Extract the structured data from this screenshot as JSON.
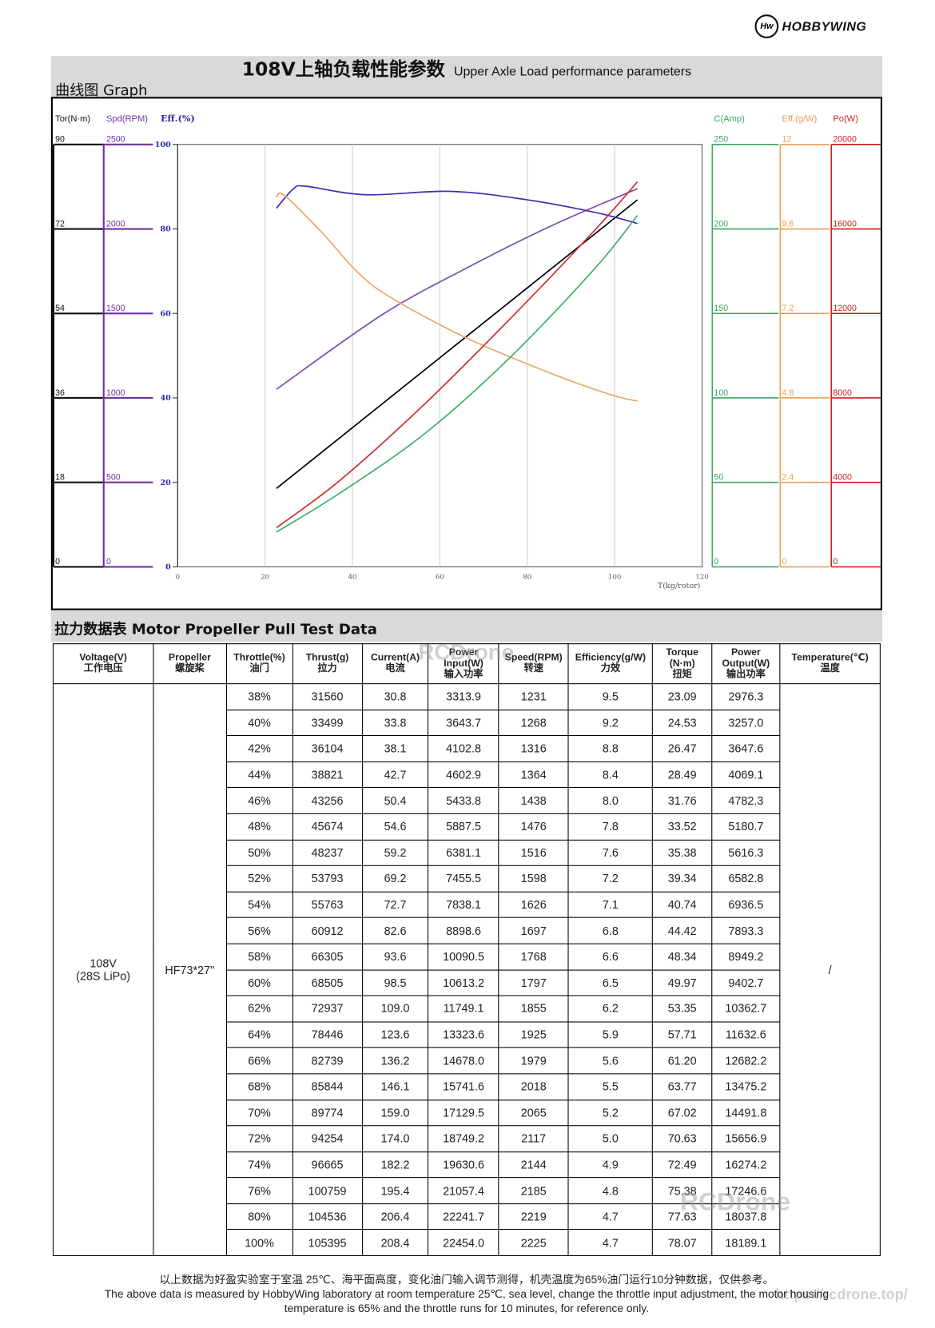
{
  "logo": {
    "mark": "Hw",
    "text": "HOBBYWING"
  },
  "header": {
    "title_cn": "108V上轴负载性能参数",
    "title_en": "Upper Axle Load performance parameters",
    "graph_label": "曲线图 Graph"
  },
  "table_section": {
    "label": "拉力数据表 Motor Propeller Pull Test Data"
  },
  "chart_data": {
    "type": "line",
    "xlabel": "T(kg/rotor)",
    "xlim": [
      0,
      120
    ],
    "x_ticks": [
      "0",
      "20",
      "40",
      "60",
      "80",
      "100",
      "120"
    ],
    "grid": "vertical",
    "axes": [
      {
        "key": "torque",
        "label": "Tor(N·m)",
        "side": "left",
        "color": "#111111",
        "ticks": [
          "90",
          "72",
          "54",
          "36",
          "18",
          "0"
        ],
        "range": [
          0,
          90
        ]
      },
      {
        "key": "speed",
        "label": "Spd(RPM)",
        "side": "left",
        "color": "#7030a0",
        "ticks": [
          "2500",
          "2000",
          "1500",
          "1000",
          "500",
          "0"
        ],
        "range": [
          0,
          2500
        ]
      },
      {
        "key": "eff_pct",
        "label": "Eff.(%)",
        "side": "left",
        "color": "#2a2aa0",
        "ticks": [
          "100",
          "80",
          "60",
          "40",
          "20",
          "0"
        ],
        "range": [
          0,
          100
        ]
      },
      {
        "key": "current",
        "label": "C(Amp)",
        "side": "right",
        "color": "#3aa860",
        "ticks": [
          "250",
          "200",
          "150",
          "100",
          "50",
          "0"
        ],
        "range": [
          0,
          250
        ]
      },
      {
        "key": "eff_gw",
        "label": "Eff.(g/W)",
        "side": "right",
        "color": "#e8a050",
        "ticks": [
          "12",
          "9.6",
          "7.2",
          "4.8",
          "2.4",
          "0"
        ],
        "range": [
          0,
          12
        ]
      },
      {
        "key": "power",
        "label": "Po(W)",
        "side": "right",
        "color": "#cc2020",
        "ticks": [
          "20000",
          "16000",
          "12000",
          "8000",
          "4000",
          "0"
        ],
        "range": [
          0,
          20000
        ]
      }
    ],
    "series": [
      {
        "axis": "torque",
        "color": "#000000",
        "x": [
          22.6,
          105.2
        ],
        "y": [
          16.7,
          78.2
        ]
      },
      {
        "axis": "speed",
        "color": "#7b4fb0",
        "x": [
          22.6,
          46.9,
          66.3,
          85.8,
          105.2
        ],
        "y": [
          1051,
          1494,
          1771,
          2022,
          2238
        ]
      },
      {
        "axis": "eff_pct",
        "color": "#3a2fb0",
        "x": [
          22.6,
          26.5,
          29.4,
          43.0,
          62.5,
          80.0,
          95.6,
          105.2
        ],
        "y": [
          84.9,
          89.5,
          90.1,
          88.1,
          88.9,
          86.9,
          83.9,
          81.3
        ]
      },
      {
        "axis": "eff_gw",
        "color": "#e8a868",
        "x": [
          22.6,
          24.5,
          33.3,
          41.1,
          48.8,
          66.3,
          85.8,
          99.4,
          105.2
        ],
        "y": [
          10.5,
          10.55,
          9.46,
          8.38,
          7.65,
          6.49,
          5.48,
          4.88,
          4.71
        ]
      },
      {
        "axis": "current",
        "color": "#3cb06a",
        "x": [
          22.6,
          37.2,
          56.6,
          76.1,
          95.6,
          105.2
        ],
        "y": [
          20.6,
          43.8,
          79,
          124,
          177,
          208
        ]
      },
      {
        "axis": "power",
        "color": "#d03030",
        "x": [
          22.6,
          37.2,
          56.6,
          76.1,
          95.6,
          105.2
        ],
        "y": [
          1851,
          4105,
          7726,
          11750,
          15976,
          18229
        ]
      }
    ]
  },
  "table": {
    "headers": [
      [
        "Voltage(V)",
        "工作电压"
      ],
      [
        "Propeller",
        "螺旋桨"
      ],
      [
        "Throttle(%)",
        "油门"
      ],
      [
        "Thrust(g)",
        "拉力"
      ],
      [
        "Current(A)",
        "电流"
      ],
      [
        "Power",
        "Input(W)",
        "输入功率"
      ],
      [
        "Speed(RPM)",
        "转速"
      ],
      [
        "Efficiency(g/W)",
        "力效"
      ],
      [
        "Torque",
        "(N·m)",
        "扭矩"
      ],
      [
        "Power",
        "Output(W)",
        "输出功率"
      ],
      [
        "Temperature(℃)",
        "温度"
      ]
    ],
    "voltage": [
      "108V",
      "(28S LiPo)"
    ],
    "propeller": "HF73*27''",
    "temperature": "/",
    "rows": [
      [
        "38%",
        "31560",
        "30.8",
        "3313.9",
        "1231",
        "9.5",
        "23.09",
        "2976.3"
      ],
      [
        "40%",
        "33499",
        "33.8",
        "3643.7",
        "1268",
        "9.2",
        "24.53",
        "3257.0"
      ],
      [
        "42%",
        "36104",
        "38.1",
        "4102.8",
        "1316",
        "8.8",
        "26.47",
        "3647.6"
      ],
      [
        "44%",
        "38821",
        "42.7",
        "4602.9",
        "1364",
        "8.4",
        "28.49",
        "4069.1"
      ],
      [
        "46%",
        "43256",
        "50.4",
        "5433.8",
        "1438",
        "8.0",
        "31.76",
        "4782.3"
      ],
      [
        "48%",
        "45674",
        "54.6",
        "5887.5",
        "1476",
        "7.8",
        "33.52",
        "5180.7"
      ],
      [
        "50%",
        "48237",
        "59.2",
        "6381.1",
        "1516",
        "7.6",
        "35.38",
        "5616.3"
      ],
      [
        "52%",
        "53793",
        "69.2",
        "7455.5",
        "1598",
        "7.2",
        "39.34",
        "6582.8"
      ],
      [
        "54%",
        "55763",
        "72.7",
        "7838.1",
        "1626",
        "7.1",
        "40.74",
        "6936.5"
      ],
      [
        "56%",
        "60912",
        "82.6",
        "8898.6",
        "1697",
        "6.8",
        "44.42",
        "7893.3"
      ],
      [
        "58%",
        "66305",
        "93.6",
        "10090.5",
        "1768",
        "6.6",
        "48.34",
        "8949.2"
      ],
      [
        "60%",
        "68505",
        "98.5",
        "10613.2",
        "1797",
        "6.5",
        "49.97",
        "9402.7"
      ],
      [
        "62%",
        "72937",
        "109.0",
        "11749.1",
        "1855",
        "6.2",
        "53.35",
        "10362.7"
      ],
      [
        "64%",
        "78446",
        "123.6",
        "13323.6",
        "1925",
        "5.9",
        "57.71",
        "11632.6"
      ],
      [
        "66%",
        "82739",
        "136.2",
        "14678.0",
        "1979",
        "5.6",
        "61.20",
        "12682.2"
      ],
      [
        "68%",
        "85844",
        "146.1",
        "15741.6",
        "2018",
        "5.5",
        "63.77",
        "13475.2"
      ],
      [
        "70%",
        "89774",
        "159.0",
        "17129.5",
        "2065",
        "5.2",
        "67.02",
        "14491.8"
      ],
      [
        "72%",
        "94254",
        "174.0",
        "18749.2",
        "2117",
        "5.0",
        "70.63",
        "15656.9"
      ],
      [
        "74%",
        "96665",
        "182.2",
        "19630.6",
        "2144",
        "4.9",
        "72.49",
        "16274.2"
      ],
      [
        "76%",
        "100759",
        "195.4",
        "21057.4",
        "2185",
        "4.8",
        "75.38",
        "17246.6"
      ],
      [
        "80%",
        "104536",
        "206.4",
        "22241.7",
        "2219",
        "4.7",
        "77.63",
        "18037.8"
      ],
      [
        "100%",
        "105395",
        "208.4",
        "22454.0",
        "2225",
        "4.7",
        "78.07",
        "18189.1"
      ]
    ]
  },
  "footer": {
    "line_cn": "以上数据为好盈实验室于室温 25℃、海平面高度，变化油门输入调节测得，机壳温度为65%油门运行10分钟数据，仅供参考。",
    "line_en1": "The above data is measured by HobbyWing laboratory at room temperature 25℃, sea level, change the throttle input adjustment, the motor housing",
    "line_en2": "temperature is 65% and the throttle runs for 10 minutes, for reference only."
  },
  "watermarks": {
    "brand": "RCDrone",
    "url": "https://rcdrone.top/"
  }
}
